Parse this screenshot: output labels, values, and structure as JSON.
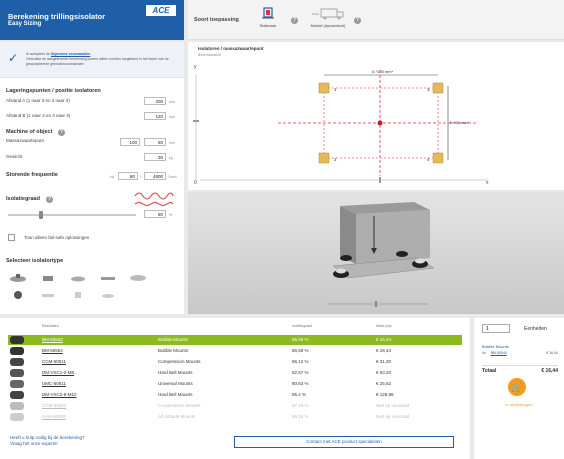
{
  "brand": {
    "title": "Berekening trillingsisolator",
    "subtitle": "Easy Sizing",
    "logo": "ACE"
  },
  "topbar": {
    "label": "Soort toepassing",
    "apps": [
      {
        "label": "Stationair",
        "icon": "stationary-machine-icon"
      },
      {
        "label": "Mobiel (dynamisch)",
        "icon": "mobile-vehicle-icon"
      }
    ]
  },
  "notice": {
    "line1_prefix": "Ik accepteer de ",
    "line1_link": "Algemene voorwaarden",
    "line2": "Gebruikte de aangeleverde berekening komen alleen worden toegekend in het kader van de geaccepteerde gebruiksvoorwaarden"
  },
  "mounting": {
    "title": "Lageringspunten / positie isolatoren",
    "distA_label": "Afstand A (1 naar 3 en 2 naar 4)",
    "distA_value": "200",
    "distA_unit": "mm",
    "distB_label": "Afstand B (1 naar 2 en 3 naar 4)",
    "distB_value": "120",
    "distB_unit": "mm"
  },
  "machine": {
    "title": "Machine of object",
    "center_label": "Massazwaartepunt",
    "center_x": "100",
    "center_y": "60",
    "center_unit": "mm",
    "weight_label": "Gewicht",
    "weight_value": "30",
    "weight_unit": "kg"
  },
  "frequency": {
    "title": "Storende frequentie",
    "hz_prefix": "Hz",
    "hz_value": "80",
    "rpm_prefix": "=",
    "rpm_value": "4800",
    "rpm_unit": "1/min"
  },
  "isolation": {
    "title": "Isolatiegraad",
    "value": "80",
    "unit": "%",
    "level": 0.8
  },
  "failsafe": {
    "label": "Toon alleen fail-safe oplossingen",
    "checked": false
  },
  "isolator_type": {
    "title": "Selecteer isolatortype"
  },
  "drawing": {
    "title": "Isolatoren / massazwaartepunt",
    "subtitle": "Bovenaanzicht",
    "dim_top": "A *100 mm*",
    "dim_right": "B *60 mm*",
    "axis_y": "y",
    "axis_0": "0",
    "axis_x": "x",
    "points": [
      "1",
      "2",
      "3",
      "4"
    ]
  },
  "table": {
    "headers": [
      "Resultaten",
      "Isolatiegraad",
      "Netto prijs"
    ],
    "rows": [
      {
        "code": "BM-50544",
        "type": "Bubble Mounts",
        "iso": "86,59 %",
        "price": "€ 16,44",
        "state": "selected"
      },
      {
        "code": "BM-50564",
        "type": "Bubble Mounts",
        "iso": "86,59 %",
        "price": "€ 16,44",
        "state": "normal"
      },
      {
        "code": "CCM-50511",
        "type": "Compression Mounts",
        "iso": "86,12 %",
        "price": "€ 31,20",
        "state": "normal"
      },
      {
        "code": "DM-VSC1-2-M8",
        "type": "Hard Bell Mounts",
        "iso": "82,57 %",
        "price": "€ 63,20",
        "state": "normal"
      },
      {
        "code": "UMC-50511",
        "type": "Universal Mounts",
        "iso": "80,63 %",
        "price": "€ 25,62",
        "state": "normal"
      },
      {
        "code": "DM-VSC2-8-M10",
        "type": "Hard Bell Mounts",
        "iso": "85,4 %",
        "price": "€ 128,96",
        "state": "normal"
      },
      {
        "code": "CCM-50501",
        "type": "Compression Mounts",
        "iso": "87,15 %",
        "price": "Niet op voorraad",
        "state": "disabled"
      },
      {
        "code": "AAM-50205",
        "type": "All Attitude Mounts",
        "iso": "86,15 %",
        "price": "Niet op voorraad",
        "state": "disabled"
      }
    ],
    "help_line1": "Heeft u hulp nodig bij de berekening?",
    "help_line2": "Vraag het onze experts!",
    "contact_label": "Contact met ACE product specialisten"
  },
  "cart": {
    "qty": "1",
    "unit_label": "Eenheden",
    "product_name": "Bubble Mounts",
    "line_qty": "4x",
    "line_code": "BM-50544",
    "line_price": "€ 16,44",
    "total_label": "Totaal",
    "total_value": "€ 16,44",
    "button_label": "in winkelwagen"
  },
  "colors": {
    "brand": "#1f5fa8",
    "selected_row": "#8bbb1f",
    "cart_button": "#f39c1a",
    "center_line": "#e03030"
  }
}
